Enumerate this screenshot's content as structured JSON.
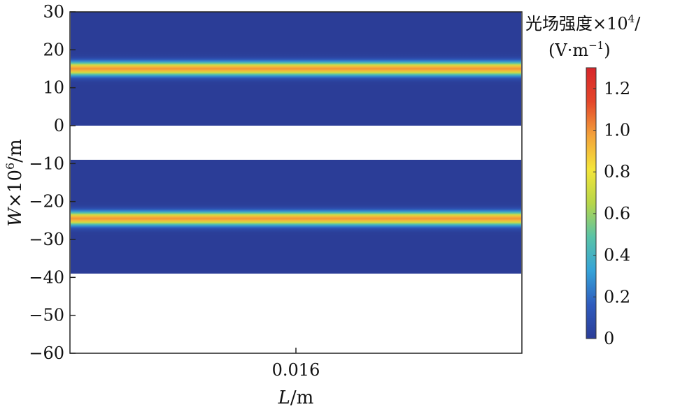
{
  "chart_data": {
    "type": "heatmap",
    "xlabel_var": "L",
    "xlabel_unit": "/m",
    "ylabel_var": "W",
    "ylabel_rest": "×10",
    "ylabel_sup": "6",
    "ylabel_unit": "/m",
    "x_ticks": [
      "0.016"
    ],
    "y_ticks": [
      "30",
      "20",
      "10",
      "0",
      "−10",
      "−20",
      "−30",
      "−40",
      "−50",
      "−60"
    ],
    "ylim": [
      -60,
      30
    ],
    "regions": [
      {
        "y_min": 0,
        "y_max": 30,
        "peak_center": 15,
        "peak_width": 2.2
      },
      {
        "y_min": -39,
        "y_max": -9,
        "peak_center": -24.5,
        "peak_width": 2.2
      }
    ],
    "colorbar": {
      "title_line1": "光场强度×10",
      "title_sup": "4",
      "title_slash": "/",
      "title_line2": "(V·m",
      "title_line2_sup": "−1",
      "title_line2_close": ")",
      "ticks": [
        "0",
        "0.2",
        "0.4",
        "0.6",
        "0.8",
        "1.0",
        "1.2"
      ],
      "tick_values": [
        0,
        0.2,
        0.4,
        0.6,
        0.8,
        1.0,
        1.2
      ],
      "range": [
        0,
        1.3
      ],
      "colors": [
        "#2b3d97",
        "#2f5bbd",
        "#35a3d8",
        "#59c3a7",
        "#b7d649",
        "#f4e53a",
        "#f3a23a",
        "#e4462a",
        "#d7262a"
      ]
    }
  }
}
